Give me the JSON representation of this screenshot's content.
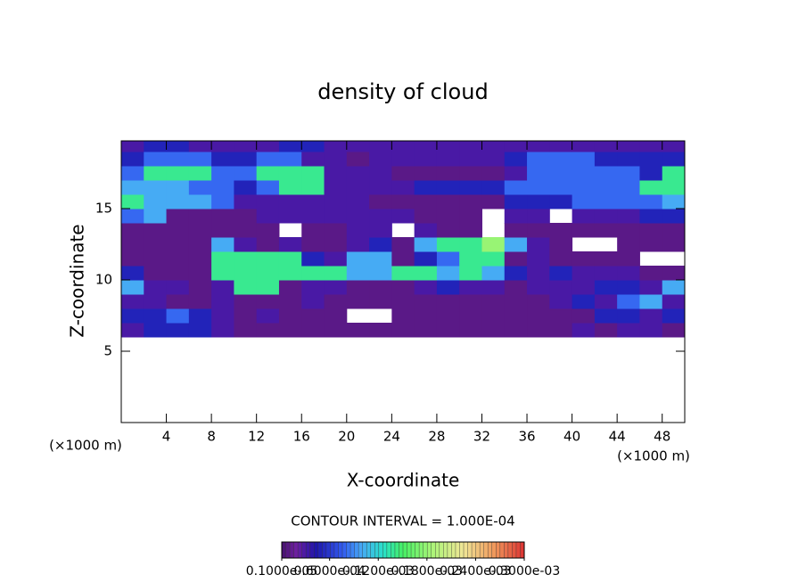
{
  "chart_data": {
    "type": "heatmap",
    "title": "density of cloud",
    "xlabel": "X-coordinate",
    "ylabel": "Z-coordinate",
    "x_unit_labels": [
      "(×1000 m)",
      "(×1000 m)"
    ],
    "annotation": "CONTOUR INTERVAL = 1.000E-04",
    "xlim": [
      0,
      50
    ],
    "ylim": [
      0,
      19.75
    ],
    "xticks": [
      4,
      8,
      12,
      16,
      20,
      24,
      28,
      32,
      36,
      40,
      44,
      48
    ],
    "yticks": [
      5,
      10,
      15
    ],
    "xbins": [
      0,
      2,
      4,
      6,
      8,
      10,
      12,
      14,
      16,
      18,
      20,
      22,
      24,
      26,
      28,
      30,
      32,
      34,
      36,
      38,
      40,
      42,
      44,
      46,
      48,
      50
    ],
    "ybins": [
      6,
      7,
      8,
      9,
      10,
      11,
      12,
      13,
      14,
      15,
      16,
      17,
      18,
      19,
      19.75
    ],
    "values": [
      [
        3e-05,
        5e-05,
        5e-05,
        5e-05,
        3e-05,
        1e-05,
        1e-05,
        1e-05,
        1e-05,
        1e-05,
        1e-05,
        1e-05,
        1e-05,
        1e-05,
        1e-05,
        1e-05,
        1e-05,
        1e-05,
        1e-05,
        1e-05,
        3e-05,
        1e-05,
        3e-05,
        3e-05,
        1e-05
      ],
      [
        5e-05,
        5e-05,
        8e-05,
        5e-05,
        3e-05,
        1e-05,
        3e-05,
        1e-05,
        1e-05,
        1e-05,
        null,
        null,
        1e-05,
        1e-05,
        1e-05,
        1e-05,
        1e-05,
        1e-05,
        1e-05,
        1e-05,
        1e-05,
        5e-05,
        5e-05,
        3e-05,
        5e-05
      ],
      [
        3e-05,
        3e-05,
        1e-05,
        1e-05,
        3e-05,
        1e-05,
        1e-05,
        1e-05,
        3e-05,
        1e-05,
        1e-05,
        1e-05,
        1e-05,
        1e-05,
        1e-05,
        1e-05,
        1e-05,
        1e-05,
        1e-05,
        3e-05,
        5e-05,
        3e-05,
        8e-05,
        0.0001,
        3e-05
      ],
      [
        0.0001,
        3e-05,
        3e-05,
        1e-05,
        3e-05,
        0.00014,
        0.00014,
        1e-05,
        3e-05,
        3e-05,
        1e-05,
        1e-05,
        1e-05,
        3e-05,
        5e-05,
        3e-05,
        3e-05,
        1e-05,
        3e-05,
        3e-05,
        3e-05,
        5e-05,
        5e-05,
        3e-05,
        0.0001
      ],
      [
        5e-05,
        1e-05,
        1e-05,
        1e-05,
        0.00014,
        0.00014,
        0.00014,
        0.00014,
        0.00014,
        0.00014,
        0.0001,
        0.0001,
        0.00014,
        0.00014,
        0.0001,
        0.00014,
        0.0001,
        5e-05,
        3e-05,
        5e-05,
        3e-05,
        3e-05,
        3e-05,
        1e-05,
        1e-05
      ],
      [
        1e-05,
        1e-05,
        1e-05,
        1e-05,
        0.00014,
        0.00014,
        0.00014,
        0.00014,
        5e-05,
        3e-05,
        0.0001,
        0.0001,
        1e-05,
        5e-05,
        8e-05,
        0.00014,
        0.00014,
        1e-05,
        3e-05,
        1e-05,
        1e-05,
        1e-05,
        1e-05,
        null,
        null
      ],
      [
        1e-05,
        1e-05,
        1e-05,
        1e-05,
        0.0001,
        3e-05,
        1e-05,
        3e-05,
        1e-05,
        1e-05,
        3e-05,
        5e-05,
        1e-05,
        0.0001,
        0.00014,
        0.00014,
        0.00018,
        0.0001,
        3e-05,
        1e-05,
        null,
        null,
        1e-05,
        1e-05,
        1e-05
      ],
      [
        1e-05,
        1e-05,
        1e-05,
        1e-05,
        1e-05,
        1e-05,
        1e-05,
        null,
        1e-05,
        1e-05,
        3e-05,
        3e-05,
        null,
        3e-05,
        1e-05,
        1e-05,
        null,
        1e-05,
        1e-05,
        1e-05,
        1e-05,
        1e-05,
        1e-05,
        1e-05,
        1e-05
      ],
      [
        8e-05,
        0.0001,
        1e-05,
        1e-05,
        1e-05,
        1e-05,
        3e-05,
        3e-05,
        3e-05,
        3e-05,
        3e-05,
        3e-05,
        3e-05,
        1e-05,
        1e-05,
        1e-05,
        null,
        3e-05,
        3e-05,
        null,
        3e-05,
        3e-05,
        3e-05,
        5e-05,
        5e-05
      ],
      [
        0.00014,
        0.0001,
        0.0001,
        0.0001,
        8e-05,
        3e-05,
        3e-05,
        3e-05,
        3e-05,
        3e-05,
        3e-05,
        1e-05,
        1e-05,
        1e-05,
        1e-05,
        1e-05,
        1e-05,
        5e-05,
        5e-05,
        5e-05,
        8e-05,
        8e-05,
        8e-05,
        8e-05,
        0.0001
      ],
      [
        0.0001,
        0.0001,
        0.0001,
        8e-05,
        8e-05,
        5e-05,
        8e-05,
        0.00014,
        0.00014,
        3e-05,
        3e-05,
        3e-05,
        3e-05,
        5e-05,
        5e-05,
        5e-05,
        5e-05,
        8e-05,
        8e-05,
        8e-05,
        8e-05,
        8e-05,
        8e-05,
        0.00014,
        0.00014
      ],
      [
        8e-05,
        0.00014,
        0.00014,
        0.00014,
        8e-05,
        8e-05,
        0.00014,
        0.00014,
        0.00014,
        3e-05,
        3e-05,
        3e-05,
        1e-05,
        1e-05,
        1e-05,
        1e-05,
        1e-05,
        3e-05,
        8e-05,
        8e-05,
        8e-05,
        8e-05,
        8e-05,
        5e-05,
        0.00014
      ],
      [
        5e-05,
        8e-05,
        8e-05,
        8e-05,
        5e-05,
        5e-05,
        8e-05,
        8e-05,
        3e-05,
        3e-05,
        1e-05,
        3e-05,
        3e-05,
        3e-05,
        3e-05,
        3e-05,
        3e-05,
        5e-05,
        8e-05,
        8e-05,
        8e-05,
        5e-05,
        5e-05,
        5e-05,
        5e-05
      ],
      [
        3e-05,
        5e-05,
        5e-05,
        3e-05,
        3e-05,
        3e-05,
        3e-05,
        5e-05,
        5e-05,
        3e-05,
        3e-05,
        3e-05,
        3e-05,
        3e-05,
        3e-05,
        3e-05,
        3e-05,
        3e-05,
        3e-05,
        3e-05,
        3e-05,
        3e-05,
        3e-05,
        3e-05,
        3e-05
      ]
    ],
    "clim": [
      1e-06,
      0.0003
    ],
    "colorbar_ticks": [
      {
        "value": 1e-06,
        "label": "0.1000e-05"
      },
      {
        "value": 6e-05,
        "label": "0.6000e-04"
      },
      {
        "value": 0.00012,
        "label": "0.1200e-03"
      },
      {
        "value": 0.00018,
        "label": "0.1800e-03"
      },
      {
        "value": 0.00024,
        "label": "0.2400e-03"
      },
      {
        "value": 0.0003,
        "label": "0.3000e-03"
      }
    ]
  }
}
